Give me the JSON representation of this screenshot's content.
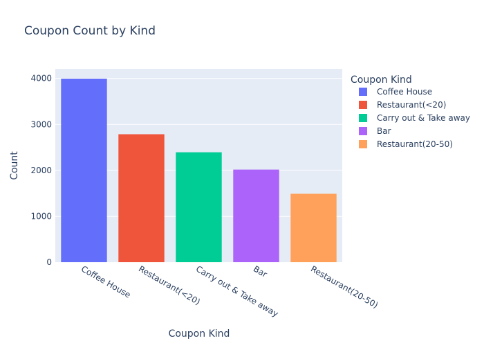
{
  "chart_data": {
    "type": "bar",
    "title": "Coupon Count by Kind",
    "xlabel": "Coupon Kind",
    "ylabel": "Count",
    "categories": [
      "Coffee House",
      "Restaurant(<20)",
      "Carry out & Take away",
      "Bar",
      "Restaurant(20-50)"
    ],
    "values": [
      3996,
      2786,
      2393,
      2017,
      1492
    ],
    "colors": [
      "#636efa",
      "#EF553B",
      "#00cc96",
      "#ab63fa",
      "#FFA15A"
    ],
    "ylim": [
      0,
      4206
    ],
    "yticks": [
      0,
      1000,
      2000,
      3000,
      4000
    ],
    "grid": true,
    "plot_background": "#E5ECF6",
    "legend": {
      "title": "Coupon Kind",
      "placement": "right",
      "entries": [
        "Coffee House",
        "Restaurant(<20)",
        "Carry out & Take away",
        "Bar",
        "Restaurant(20-50)"
      ]
    }
  }
}
